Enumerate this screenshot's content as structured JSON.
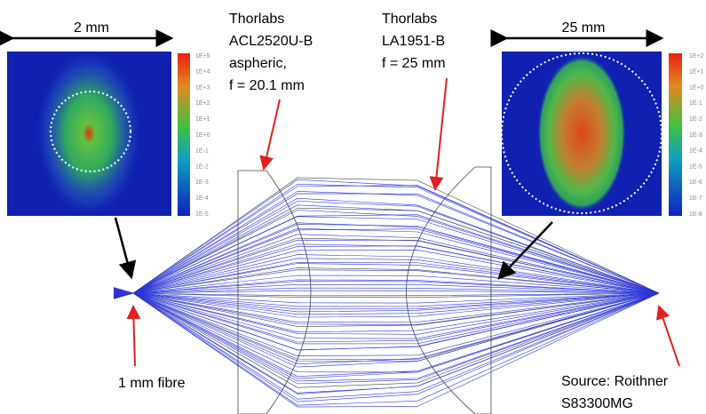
{
  "scale_left": "2 mm",
  "scale_right": "25 mm",
  "lens1_label": [
    "Thorlabs",
    "ACL2520U-B",
    "aspheric,",
    "f = 20.1 mm"
  ],
  "lens2_label": [
    "Thorlabs",
    "LA1951-B",
    "f = 25 mm"
  ],
  "fibre_label": "1 mm fibre",
  "source_label": [
    "Source: Roithner",
    "S83300MG"
  ],
  "colorbar_left": [
    "1E+5",
    "1E+4",
    "1E+3",
    "1E+2",
    "1E+1",
    "1E+0",
    "1E-1",
    "1E-2",
    "1E-3",
    "1E-4",
    "1E-5"
  ],
  "colorbar_right": [
    "1E+2",
    "1E+1",
    "1E+0",
    "1E-1",
    "1E-2",
    "1E-3",
    "1E-4",
    "1E-5",
    "1E-6",
    "1E-7",
    "1E-8"
  ]
}
